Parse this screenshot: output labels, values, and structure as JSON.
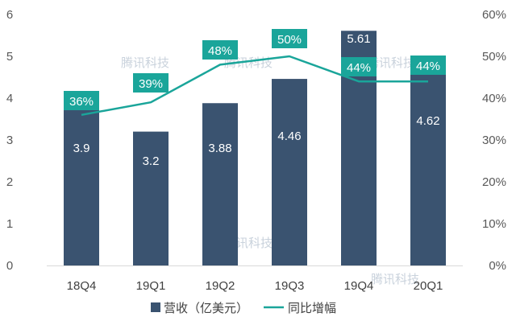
{
  "chart_data": {
    "type": "bar",
    "title": "",
    "categories": [
      "18Q4",
      "19Q1",
      "19Q2",
      "19Q3",
      "19Q4",
      "20Q1"
    ],
    "series": [
      {
        "name": "营收（亿美元）",
        "type": "bar",
        "axis": "left",
        "values": [
          3.9,
          3.2,
          3.88,
          4.46,
          5.61,
          4.62
        ],
        "labels": [
          "3.9",
          "3.2",
          "3.88",
          "4.46",
          "5.61",
          "4.62"
        ]
      },
      {
        "name": "同比增幅",
        "type": "line",
        "axis": "right",
        "values": [
          36,
          39,
          48,
          50,
          44,
          44
        ],
        "labels": [
          "36%",
          "39%",
          "48%",
          "50%",
          "44%",
          "44%"
        ]
      }
    ],
    "y_left": {
      "min": 0,
      "max": 6,
      "ticks": [
        "0",
        "1",
        "2",
        "3",
        "4",
        "5",
        "6"
      ]
    },
    "y_right": {
      "min": 0,
      "max": 60,
      "ticks": [
        "0%",
        "10%",
        "20%",
        "30%",
        "40%",
        "50%",
        "60%"
      ]
    },
    "legend_position": "bottom",
    "grid": false,
    "colors": {
      "bar": "#3a5370",
      "line": "#1aa59a",
      "label_box": "#1aa59a"
    }
  },
  "watermark": "腾讯科技"
}
